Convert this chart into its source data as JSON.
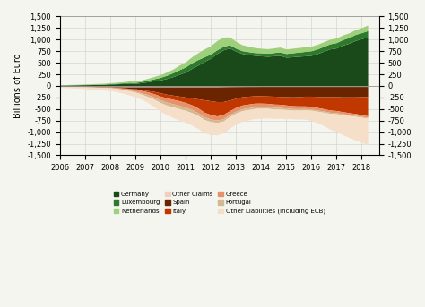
{
  "ylabel": "Billions of Euro",
  "ylim": [
    -1500,
    1500
  ],
  "yticks": [
    -1500,
    -1250,
    -1000,
    -750,
    -500,
    -250,
    0,
    250,
    500,
    750,
    1000,
    1250,
    1500
  ],
  "background_color": "#f5f5f0",
  "grid_color": "#cccccc",
  "legend": [
    {
      "label": "Germany",
      "color": "#1a4a1a"
    },
    {
      "label": "Luxembourg",
      "color": "#2d7a2d"
    },
    {
      "label": "Netherlands",
      "color": "#9ecf7a"
    },
    {
      "label": "Other Claims",
      "color": "#f0cfc0"
    },
    {
      "label": "Spain",
      "color": "#6b2400"
    },
    {
      "label": "Italy",
      "color": "#c03800"
    },
    {
      "label": "Greece",
      "color": "#e8906a"
    },
    {
      "label": "Portugal",
      "color": "#d4b890"
    },
    {
      "label": "Other Liabilities (including ECB)",
      "color": "#f5dfc8"
    }
  ],
  "colors": {
    "Germany": "#1a4a1a",
    "Luxembourg": "#2d7a2d",
    "Netherlands": "#9ecf7a",
    "Other_Claims": "#f0cfc0",
    "Spain": "#6b2400",
    "Italy": "#c03800",
    "Greece": "#e8906a",
    "Portugal": "#d4b890",
    "Other_Liab": "#f5dfc8"
  },
  "x": [
    2006.0,
    2006.25,
    2006.5,
    2006.75,
    2007.0,
    2007.25,
    2007.5,
    2007.75,
    2008.0,
    2008.25,
    2008.5,
    2008.75,
    2009.0,
    2009.25,
    2009.5,
    2009.75,
    2010.0,
    2010.25,
    2010.5,
    2010.75,
    2011.0,
    2011.25,
    2011.5,
    2011.75,
    2012.0,
    2012.25,
    2012.5,
    2012.75,
    2013.0,
    2013.25,
    2013.5,
    2013.75,
    2014.0,
    2014.25,
    2014.5,
    2014.75,
    2015.0,
    2015.25,
    2015.5,
    2015.75,
    2016.0,
    2016.25,
    2016.5,
    2016.75,
    2017.0,
    2017.25,
    2017.5,
    2017.75,
    2018.0,
    2018.25
  ],
  "series": {
    "Germany": [
      15,
      18,
      20,
      22,
      25,
      28,
      30,
      32,
      40,
      45,
      50,
      60,
      55,
      70,
      90,
      110,
      130,
      160,
      200,
      250,
      300,
      380,
      450,
      530,
      600,
      700,
      780,
      820,
      750,
      700,
      680,
      660,
      650,
      640,
      650,
      660,
      620,
      630,
      640,
      650,
      660,
      700,
      750,
      800,
      820,
      880,
      920,
      980,
      1020,
      1060
    ],
    "Luxembourg": [
      5,
      5,
      6,
      6,
      7,
      7,
      8,
      8,
      10,
      12,
      15,
      18,
      20,
      25,
      35,
      45,
      55,
      70,
      85,
      100,
      110,
      120,
      120,
      100,
      90,
      80,
      75,
      70,
      65,
      60,
      60,
      60,
      65,
      65,
      70,
      75,
      80,
      85,
      90,
      95,
      100,
      100,
      105,
      110,
      115,
      120,
      125,
      130,
      130,
      135
    ],
    "Netherlands": [
      5,
      6,
      7,
      8,
      10,
      12,
      15,
      18,
      20,
      22,
      25,
      30,
      30,
      35,
      40,
      50,
      60,
      70,
      80,
      100,
      110,
      130,
      150,
      170,
      180,
      200,
      200,
      170,
      150,
      130,
      120,
      110,
      100,
      100,
      100,
      105,
      100,
      100,
      100,
      100,
      100,
      100,
      100,
      100,
      100,
      100,
      100,
      105,
      110,
      120
    ],
    "Other_Claims": [
      -5,
      -5,
      -6,
      -6,
      -7,
      -8,
      -10,
      -12,
      -15,
      -18,
      -20,
      -20,
      -20,
      -20,
      -20,
      -20,
      -20,
      -20,
      -20,
      -20,
      -20,
      -20,
      -20,
      -20,
      -20,
      -20,
      -18,
      -16,
      -15,
      -14,
      -13,
      -13,
      -12,
      -12,
      -12,
      -12,
      -12,
      -12,
      -12,
      -12,
      -12,
      -12,
      -12,
      -12,
      -12,
      -12,
      -12,
      -12,
      -12,
      -12
    ],
    "Spain": [
      -5,
      -5,
      -5,
      -5,
      -5,
      -5,
      -5,
      -5,
      -5,
      -10,
      -20,
      -30,
      -40,
      -60,
      -80,
      -100,
      -130,
      -160,
      -180,
      -200,
      -220,
      -240,
      -260,
      -280,
      -300,
      -320,
      -320,
      -290,
      -250,
      -220,
      -210,
      -200,
      -200,
      -205,
      -210,
      -215,
      -220,
      -225,
      -220,
      -210,
      -210,
      -215,
      -220,
      -220,
      -220,
      -225,
      -225,
      -225,
      -220,
      -215
    ],
    "Italy": [
      -3,
      -3,
      -3,
      -3,
      -3,
      -3,
      -5,
      -5,
      -5,
      -5,
      -8,
      -10,
      -15,
      -20,
      -30,
      -50,
      -70,
      -80,
      -90,
      -100,
      -120,
      -150,
      -200,
      -270,
      -300,
      -310,
      -280,
      -230,
      -200,
      -180,
      -170,
      -160,
      -160,
      -160,
      -170,
      -170,
      -180,
      -190,
      -200,
      -210,
      -220,
      -240,
      -260,
      -290,
      -300,
      -320,
      -340,
      -360,
      -390,
      -420
    ],
    "Greece": [
      0,
      0,
      0,
      0,
      -2,
      -3,
      -5,
      -8,
      -10,
      -15,
      -20,
      -30,
      -40,
      -50,
      -60,
      -70,
      -80,
      -90,
      -95,
      -100,
      -100,
      -100,
      -100,
      -100,
      -95,
      -90,
      -90,
      -85,
      -80,
      -80,
      -80,
      -78,
      -75,
      -72,
      -70,
      -68,
      -65,
      -63,
      -60,
      -58,
      -55,
      -53,
      -50,
      -48,
      -45,
      -43,
      -40,
      -38,
      -35,
      -33
    ],
    "Portugal": [
      0,
      0,
      0,
      0,
      -2,
      -3,
      -5,
      -5,
      -5,
      -8,
      -10,
      -15,
      -20,
      -30,
      -40,
      -50,
      -60,
      -65,
      -70,
      -70,
      -70,
      -68,
      -65,
      -60,
      -55,
      -50,
      -48,
      -45,
      -42,
      -40,
      -38,
      -36,
      -35,
      -35,
      -35,
      -34,
      -33,
      -32,
      -31,
      -30,
      -29,
      -28,
      -27,
      -26,
      -25,
      -24,
      -23,
      -22,
      -21,
      -20
    ],
    "Other_Liab": [
      -20,
      -25,
      -30,
      -35,
      -40,
      -45,
      -50,
      -55,
      -60,
      -70,
      -80,
      -90,
      -100,
      -110,
      -130,
      -160,
      -190,
      -210,
      -230,
      -250,
      -260,
      -270,
      -280,
      -290,
      -280,
      -270,
      -260,
      -250,
      -240,
      -230,
      -225,
      -220,
      -215,
      -210,
      -205,
      -200,
      -195,
      -190,
      -195,
      -200,
      -220,
      -250,
      -290,
      -340,
      -380,
      -430,
      -470,
      -510,
      -540,
      -570
    ]
  }
}
